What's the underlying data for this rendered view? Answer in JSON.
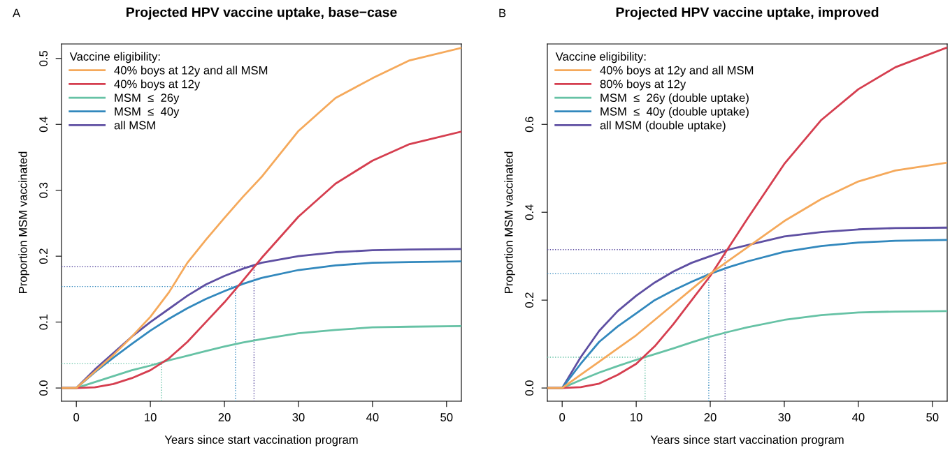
{
  "chart_data": [
    {
      "type": "line",
      "title": "Projected HPV vaccine uptake, base−case",
      "xlabel": "Years since start vaccination program",
      "ylabel": "Proportion MSM vaccinated",
      "legend_title": "Vaccine eligibility:",
      "legend": "top left",
      "grid": false,
      "annotations": [
        "A"
      ],
      "x": [
        -2,
        0,
        2.5,
        5,
        7.5,
        10,
        12.5,
        15,
        17.5,
        20,
        22.5,
        25,
        30,
        35,
        40,
        45,
        52
      ],
      "xlim": [
        -2,
        52
      ],
      "xticks": [
        0,
        10,
        20,
        30,
        40,
        50
      ],
      "ylim": [
        -0.02,
        0.522
      ],
      "yticks": [
        {
          "value": 0,
          "label": "0.0"
        },
        0.1,
        0.2,
        0.3,
        0.4,
        0.5
      ],
      "series": [
        {
          "name": "40% boys at 12y and all MSM",
          "color": "#f5a95b",
          "values": [
            0,
            0,
            0.025,
            0.05,
            0.078,
            0.108,
            0.145,
            0.19,
            0.225,
            0.258,
            0.29,
            0.32,
            0.39,
            0.44,
            0.47,
            0.497,
            0.516
          ]
        },
        {
          "name": "40% boys at 12y",
          "color": "#d53e4f",
          "values": [
            0,
            0,
            0.001,
            0.006,
            0.015,
            0.027,
            0.045,
            0.07,
            0.1,
            0.13,
            0.163,
            0.197,
            0.26,
            0.31,
            0.345,
            0.37,
            0.389
          ]
        },
        {
          "name": "MSM  ≤  26y",
          "color": "#66c2a5",
          "values": [
            0,
            0,
            0.009,
            0.018,
            0.027,
            0.034,
            0.042,
            0.049,
            0.056,
            0.063,
            0.069,
            0.074,
            0.083,
            0.088,
            0.092,
            0.093,
            0.094
          ]
        },
        {
          "name": "MSM  ≤  40y",
          "color": "#3288bd",
          "values": [
            0,
            0,
            0.024,
            0.046,
            0.067,
            0.087,
            0.105,
            0.121,
            0.135,
            0.147,
            0.158,
            0.167,
            0.179,
            0.186,
            0.19,
            0.191,
            0.192
          ]
        },
        {
          "name": "all MSM",
          "color": "#5e4fa2",
          "values": [
            0,
            0,
            0.028,
            0.053,
            0.078,
            0.1,
            0.12,
            0.14,
            0.157,
            0.17,
            0.181,
            0.19,
            0.2,
            0.206,
            0.209,
            0.21,
            0.211
          ]
        },
        {
          "color": "#66c2a5",
          "line_style": "dotted",
          "x": [
            -2,
            11.5,
            11.5
          ],
          "values": [
            0.037,
            0.037,
            -0.02
          ]
        },
        {
          "color": "#3288bd",
          "line_style": "dotted",
          "x": [
            -2,
            21.5,
            21.5
          ],
          "values": [
            0.154,
            0.154,
            -0.02
          ]
        },
        {
          "color": "#5e4fa2",
          "line_style": "dotted",
          "x": [
            -2,
            24,
            24
          ],
          "values": [
            0.184,
            0.184,
            -0.02
          ]
        }
      ]
    },
    {
      "type": "line",
      "title": "Projected HPV vaccine uptake, improved",
      "xlabel": "Years since start vaccination program",
      "ylabel": "Proportion MSM vaccinated",
      "legend_title": "Vaccine eligibility:",
      "legend": "top left",
      "grid": false,
      "annotations": [
        "B"
      ],
      "x": [
        -2,
        0,
        2.5,
        5,
        7.5,
        10,
        12.5,
        15,
        17.5,
        20,
        22.5,
        25,
        30,
        35,
        40,
        45,
        52
      ],
      "xlim": [
        -2,
        52
      ],
      "xticks": [
        0,
        10,
        20,
        30,
        40,
        50
      ],
      "ylim": [
        -0.03,
        0.783
      ],
      "yticks": [
        {
          "value": 0,
          "label": "0.0"
        },
        0.2,
        0.4,
        0.6
      ],
      "series": [
        {
          "name": "40% boys at 12y and all MSM",
          "color": "#f5a95b",
          "values": [
            0,
            0,
            0.03,
            0.06,
            0.09,
            0.12,
            0.155,
            0.19,
            0.225,
            0.26,
            0.29,
            0.32,
            0.38,
            0.43,
            0.47,
            0.495,
            0.513
          ]
        },
        {
          "name": "80% boys at 12y",
          "color": "#d53e4f",
          "values": [
            0,
            0,
            0.002,
            0.01,
            0.03,
            0.055,
            0.095,
            0.145,
            0.2,
            0.255,
            0.32,
            0.385,
            0.51,
            0.61,
            0.68,
            0.73,
            0.775
          ]
        },
        {
          "name": "MSM  ≤  26y (double uptake)",
          "color": "#66c2a5",
          "values": [
            0,
            0,
            0.018,
            0.035,
            0.05,
            0.064,
            0.077,
            0.09,
            0.104,
            0.117,
            0.128,
            0.138,
            0.155,
            0.166,
            0.172,
            0.174,
            0.175
          ]
        },
        {
          "name": "MSM  ≤  40y (double uptake)",
          "color": "#3288bd",
          "values": [
            0,
            0,
            0.055,
            0.105,
            0.14,
            0.17,
            0.2,
            0.222,
            0.242,
            0.26,
            0.275,
            0.288,
            0.31,
            0.323,
            0.331,
            0.335,
            0.337
          ]
        },
        {
          "name": "all MSM (double uptake)",
          "color": "#5e4fa2",
          "values": [
            0,
            0,
            0.07,
            0.13,
            0.175,
            0.21,
            0.24,
            0.265,
            0.285,
            0.3,
            0.315,
            0.325,
            0.345,
            0.355,
            0.361,
            0.364,
            0.365
          ]
        },
        {
          "color": "#66c2a5",
          "line_style": "dotted",
          "x": [
            -2,
            11.2,
            11.2
          ],
          "values": [
            0.07,
            0.07,
            -0.03
          ]
        },
        {
          "color": "#3288bd",
          "line_style": "dotted",
          "x": [
            -2,
            19.8,
            19.8
          ],
          "values": [
            0.26,
            0.26,
            -0.03
          ]
        },
        {
          "color": "#5e4fa2",
          "line_style": "dotted",
          "x": [
            -2,
            22,
            22
          ],
          "values": [
            0.315,
            0.315,
            -0.03
          ]
        }
      ]
    }
  ]
}
